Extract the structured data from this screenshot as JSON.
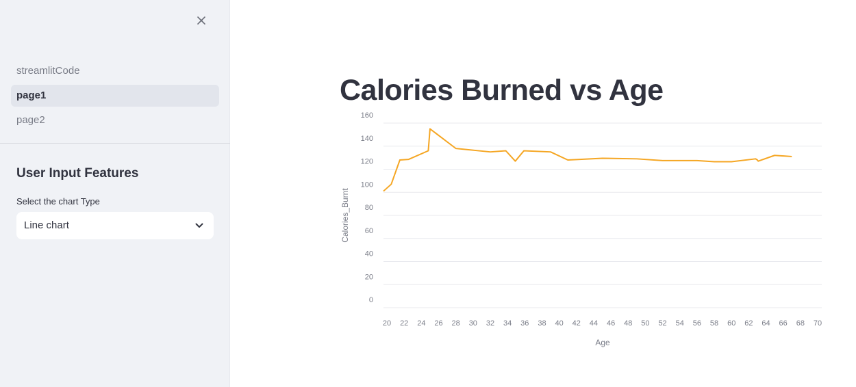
{
  "sidebar": {
    "nav_items": [
      {
        "label": "streamlitCode",
        "active": false
      },
      {
        "label": "page1",
        "active": true
      },
      {
        "label": "page2",
        "active": false
      }
    ],
    "section_title": "User Input Features",
    "select_label": "Select the chart Type",
    "select_value": "Line chart"
  },
  "main": {
    "title": "Calories Burned vs Age"
  },
  "colors": {
    "line": "#f5a623",
    "sidebar_bg": "#f0f2f6",
    "text": "#31333f"
  },
  "chart_data": {
    "type": "line",
    "xlabel": "Age",
    "ylabel": "Calories_Burnt",
    "xlim": [
      19.6,
      70
    ],
    "ylim": [
      0,
      160
    ],
    "x_ticks": [
      20,
      22,
      24,
      26,
      28,
      30,
      32,
      34,
      36,
      38,
      40,
      42,
      44,
      46,
      48,
      50,
      52,
      54,
      56,
      58,
      60,
      62,
      64,
      66,
      68,
      70
    ],
    "y_ticks": [
      0,
      20,
      40,
      60,
      80,
      100,
      120,
      140,
      160
    ],
    "grid": true,
    "series": [
      {
        "x": [
          19.6,
          20.5,
          21.5,
          22.5,
          24.8,
          25.0,
          28.0,
          32.0,
          33.8,
          34.9,
          35.9,
          39.0,
          41.0,
          45.0,
          49.0,
          52.0,
          56.0,
          58.0,
          60.0,
          62.8,
          63.0,
          63.1,
          65.0,
          67.0
        ],
        "y": [
          101,
          107,
          128,
          128.5,
          136,
          155,
          138,
          135,
          136,
          127,
          136,
          135,
          128,
          129.5,
          129,
          127.5,
          127.5,
          126.5,
          126.5,
          129,
          128,
          127,
          132,
          131
        ]
      }
    ]
  }
}
